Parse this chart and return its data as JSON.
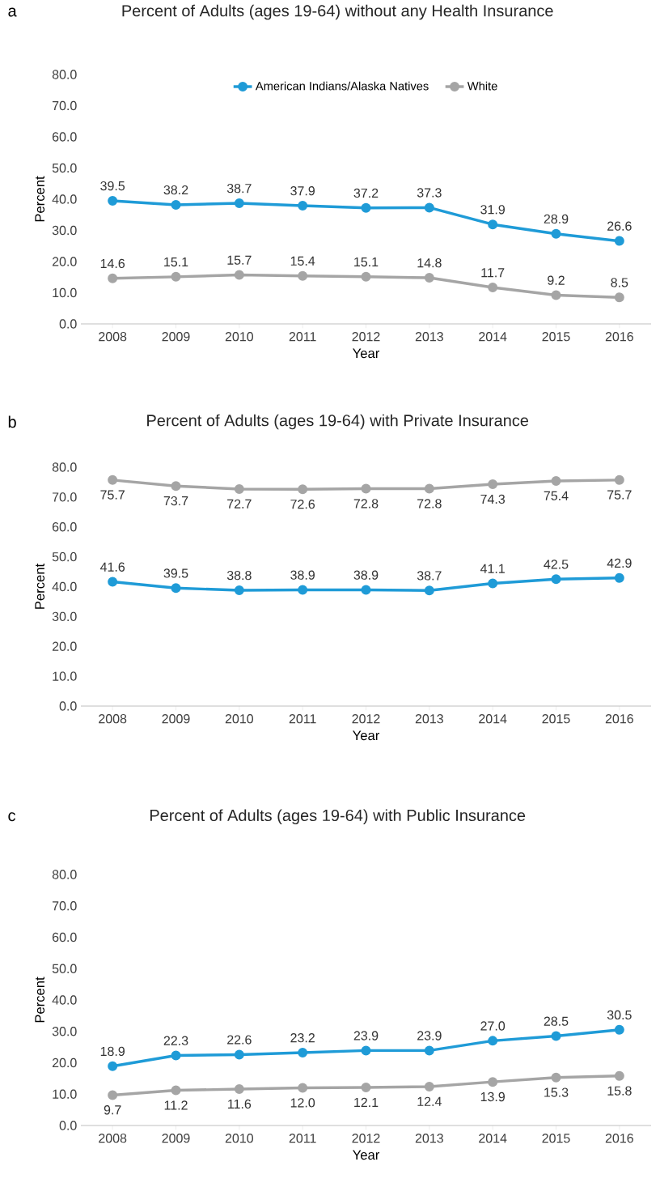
{
  "chart_data": [
    {
      "type": "line",
      "title": "Percent of Adults (ages 19-64) without any Health Insurance",
      "xlabel": "Year",
      "ylabel": "Percent",
      "annotations": [
        "a"
      ],
      "categories": [
        "2008",
        "2009",
        "2010",
        "2011",
        "2012",
        "2013",
        "2014",
        "2015",
        "2016"
      ],
      "series": [
        {
          "name": "American Indians/Alaska Natives",
          "color": "#1f9bd7",
          "values": [
            39.5,
            38.2,
            38.7,
            37.9,
            37.2,
            37.3,
            31.9,
            28.9,
            26.6
          ],
          "value_labels": [
            "39.5",
            "38.2",
            "38.7",
            "37.9",
            "37.2",
            "37.3",
            "31.9",
            "28.9",
            "26.6"
          ]
        },
        {
          "name": "White",
          "color": "#a5a5a5",
          "values": [
            14.6,
            15.1,
            15.7,
            15.4,
            15.1,
            14.8,
            11.7,
            9.2,
            8.5
          ],
          "value_labels": [
            "14.6",
            "15.1",
            "15.7",
            "15.4",
            "15.1",
            "14.8",
            "11.7",
            "9.2",
            "8.5"
          ]
        }
      ],
      "ylim": [
        0,
        80
      ],
      "yticks": [
        {
          "value": 0,
          "label": "0.0"
        },
        {
          "value": 10,
          "label": "10.0"
        },
        {
          "value": 20,
          "label": "20.0"
        },
        {
          "value": 30,
          "label": "30.0"
        },
        {
          "value": 40,
          "label": "40.0"
        },
        {
          "value": 50,
          "label": "50.0"
        },
        {
          "value": 60,
          "label": "60.0"
        },
        {
          "value": 70,
          "label": "70.0"
        },
        {
          "value": 80,
          "label": "80.0"
        }
      ],
      "marker": "circle",
      "legend": "top"
    },
    {
      "type": "line",
      "title": "Percent of Adults (ages 19-64) with Private Insurance",
      "xlabel": "Year",
      "ylabel": "Percent",
      "annotations": [
        "b"
      ],
      "categories": [
        "2008",
        "2009",
        "2010",
        "2011",
        "2012",
        "2013",
        "2014",
        "2015",
        "2016"
      ],
      "series": [
        {
          "color": "#1f9bd7",
          "values": [
            41.6,
            39.5,
            38.8,
            38.9,
            38.9,
            38.7,
            41.1,
            42.5,
            42.9
          ],
          "value_labels": [
            "41.6",
            "39.5",
            "38.8",
            "38.9",
            "38.9",
            "38.7",
            "41.1",
            "42.5",
            "42.9"
          ]
        },
        {
          "color": "#a5a5a5",
          "values": [
            75.7,
            73.7,
            72.7,
            72.6,
            72.8,
            72.8,
            74.3,
            75.4,
            75.7
          ],
          "value_labels": [
            "75.7",
            "73.7",
            "72.7",
            "72.6",
            "72.8",
            "72.8",
            "74.3",
            "75.4",
            "75.7"
          ]
        }
      ],
      "ylim": [
        0,
        80
      ],
      "yticks": [
        {
          "value": 0,
          "label": "0.0"
        },
        {
          "value": 10,
          "label": "10.0"
        },
        {
          "value": 20,
          "label": "20.0"
        },
        {
          "value": 30,
          "label": "30.0"
        },
        {
          "value": 40,
          "label": "40.0"
        },
        {
          "value": 50,
          "label": "50.0"
        },
        {
          "value": 60,
          "label": "60.0"
        },
        {
          "value": 70,
          "label": "70.0"
        },
        {
          "value": 80,
          "label": "80.0"
        }
      ],
      "marker": "circle"
    },
    {
      "type": "line",
      "title": "Percent of Adults (ages 19-64) with Public Insurance",
      "xlabel": "Year",
      "ylabel": "Percent",
      "annotations": [
        "c"
      ],
      "categories": [
        "2008",
        "2009",
        "2010",
        "2011",
        "2012",
        "2013",
        "2014",
        "2015",
        "2016"
      ],
      "series": [
        {
          "color": "#1f9bd7",
          "values": [
            18.9,
            22.3,
            22.6,
            23.2,
            23.9,
            23.9,
            27.0,
            28.5,
            30.5
          ],
          "value_labels": [
            "18.9",
            "22.3",
            "22.6",
            "23.2",
            "23.9",
            "23.9",
            "27.0",
            "28.5",
            "30.5"
          ]
        },
        {
          "color": "#a5a5a5",
          "values": [
            9.7,
            11.2,
            11.6,
            12.0,
            12.1,
            12.4,
            13.9,
            15.3,
            15.8
          ],
          "value_labels": [
            "9.7",
            "11.2",
            "11.6",
            "12.0",
            "12.1",
            "12.4",
            "13.9",
            "15.3",
            "15.8"
          ]
        }
      ],
      "ylim": [
        0,
        80
      ],
      "yticks": [
        {
          "value": 0,
          "label": "0.0"
        },
        {
          "value": 10,
          "label": "10.0"
        },
        {
          "value": 20,
          "label": "20.0"
        },
        {
          "value": 30,
          "label": "30.0"
        },
        {
          "value": 40,
          "label": "40.0"
        },
        {
          "value": 50,
          "label": "50.0"
        },
        {
          "value": 60,
          "label": "60.0"
        },
        {
          "value": 70,
          "label": "70.0"
        },
        {
          "value": 80,
          "label": "80.0"
        }
      ],
      "marker": "circle"
    }
  ]
}
